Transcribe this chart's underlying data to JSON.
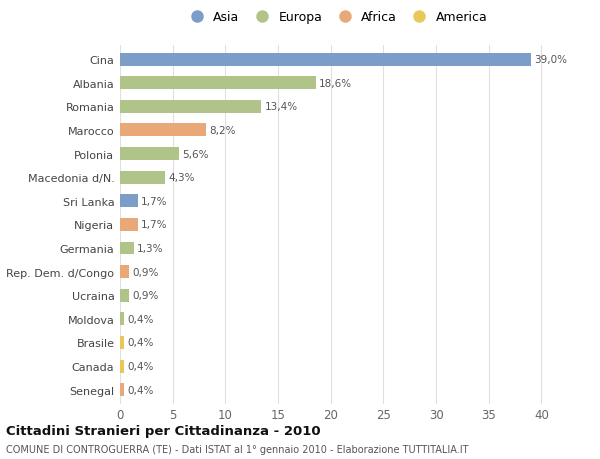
{
  "countries": [
    "Cina",
    "Albania",
    "Romania",
    "Marocco",
    "Polonia",
    "Macedonia d/N.",
    "Sri Lanka",
    "Nigeria",
    "Germania",
    "Rep. Dem. d/Congo",
    "Ucraina",
    "Moldova",
    "Brasile",
    "Canada",
    "Senegal"
  ],
  "values": [
    39.0,
    18.6,
    13.4,
    8.2,
    5.6,
    4.3,
    1.7,
    1.7,
    1.3,
    0.9,
    0.9,
    0.4,
    0.4,
    0.4,
    0.4
  ],
  "labels": [
    "39,0%",
    "18,6%",
    "13,4%",
    "8,2%",
    "5,6%",
    "4,3%",
    "1,7%",
    "1,7%",
    "1,3%",
    "0,9%",
    "0,9%",
    "0,4%",
    "0,4%",
    "0,4%",
    "0,4%"
  ],
  "continents": [
    "Asia",
    "Europa",
    "Europa",
    "Africa",
    "Europa",
    "Europa",
    "Asia",
    "Africa",
    "Europa",
    "Africa",
    "Europa",
    "Europa",
    "America",
    "America",
    "Africa"
  ],
  "colors": {
    "Asia": "#7b9dc8",
    "Europa": "#b0c48a",
    "Africa": "#e8a878",
    "America": "#e8c85a"
  },
  "legend_order": [
    "Asia",
    "Europa",
    "Africa",
    "America"
  ],
  "title": "Cittadini Stranieri per Cittadinanza - 2010",
  "subtitle": "COMUNE DI CONTROGUERRA (TE) - Dati ISTAT al 1° gennaio 2010 - Elaborazione TUTTITALIA.IT",
  "xlim": [
    0,
    41
  ],
  "xticks": [
    0,
    5,
    10,
    15,
    20,
    25,
    30,
    35,
    40
  ],
  "bg_color": "#ffffff",
  "grid_color": "#e0e0e0",
  "bar_height": 0.55
}
